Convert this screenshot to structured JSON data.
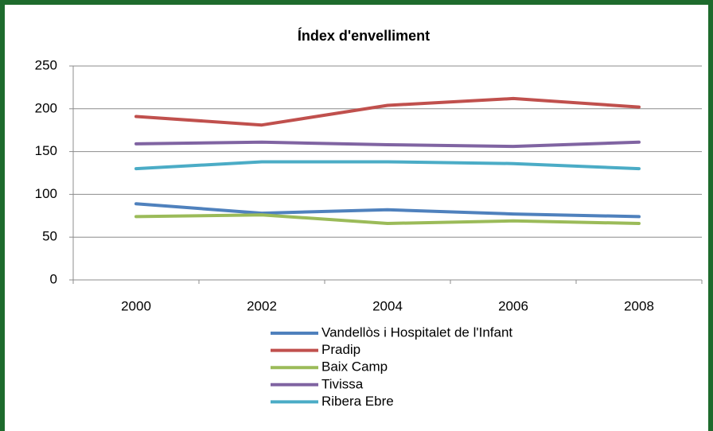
{
  "chart_data": {
    "type": "line",
    "title": "Índex d'envelliment",
    "categories": [
      "2000",
      "2002",
      "2004",
      "2006",
      "2008"
    ],
    "series": [
      {
        "name": "Vandellòs i Hospitalet de l'Infant",
        "color": "#4f81bd",
        "values": [
          89,
          78,
          82,
          77,
          74
        ]
      },
      {
        "name": "Pradip",
        "color": "#c0504d",
        "values": [
          191,
          181,
          204,
          212,
          202
        ]
      },
      {
        "name": "Baix Camp",
        "color": "#9bbb59",
        "values": [
          74,
          76,
          66,
          69,
          66
        ]
      },
      {
        "name": "Tivissa",
        "color": "#8064a2",
        "values": [
          159,
          161,
          158,
          156,
          161
        ]
      },
      {
        "name": "Ribera Ebre",
        "color": "#4bacc6",
        "values": [
          130,
          138,
          138,
          136,
          130
        ]
      }
    ],
    "ylim": [
      0,
      250
    ],
    "yticks": [
      0,
      50,
      100,
      150,
      200,
      250
    ],
    "grid": true,
    "legend": "bottom"
  }
}
